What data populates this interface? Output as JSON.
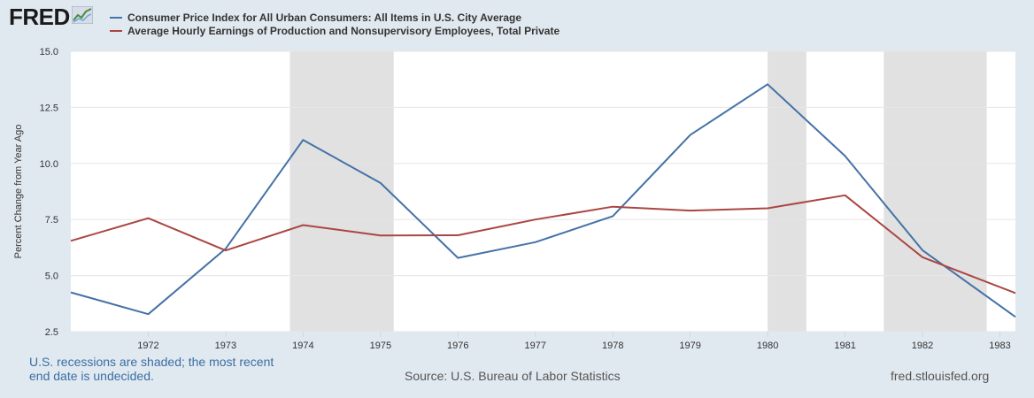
{
  "brand": {
    "logo_text": "FRED"
  },
  "chart_data": {
    "type": "line",
    "ylabel": "Percent Change from Year Ago",
    "ylim": [
      2.5,
      15.0
    ],
    "yticks": [
      "2.5",
      "5.0",
      "7.5",
      "10.0",
      "12.5",
      "15.0"
    ],
    "xticks": [
      "1972",
      "1973",
      "1974",
      "1975",
      "1976",
      "1977",
      "1978",
      "1979",
      "1980",
      "1981",
      "1982",
      "1983"
    ],
    "xlim": [
      1971,
      1983.2
    ],
    "recessions": [
      [
        1973.83,
        1975.17
      ],
      [
        1980.0,
        1980.5
      ],
      [
        1981.5,
        1982.83
      ]
    ],
    "grid": true,
    "series": [
      {
        "name": "Consumer Price Index for All Urban Consumers: All Items in U.S. City Average",
        "color": "#4572a7",
        "x": [
          1971,
          1972,
          1973,
          1974,
          1975,
          1976,
          1977,
          1978,
          1979,
          1980,
          1981,
          1982,
          1983.2
        ],
        "values": [
          4.25,
          3.28,
          6.2,
          11.05,
          9.13,
          5.79,
          6.49,
          7.65,
          11.27,
          13.53,
          10.33,
          6.13,
          3.16
        ]
      },
      {
        "name": "Average Hourly Earnings of Production and Nonsupervisory Employees, Total Private",
        "color": "#aa4643",
        "x": [
          1971,
          1972,
          1973,
          1974,
          1975,
          1976,
          1977,
          1978,
          1979,
          1980,
          1981,
          1982,
          1983.2
        ],
        "values": [
          6.55,
          7.56,
          6.12,
          7.25,
          6.79,
          6.8,
          7.5,
          8.07,
          7.9,
          8.0,
          8.58,
          5.82,
          4.22
        ]
      }
    ]
  },
  "footer": {
    "recession_note": "U.S. recessions are shaded; the most recent end date is undecided.",
    "source": "Source: U.S. Bureau of Labor Statistics",
    "url": "fred.stlouisfed.org"
  }
}
